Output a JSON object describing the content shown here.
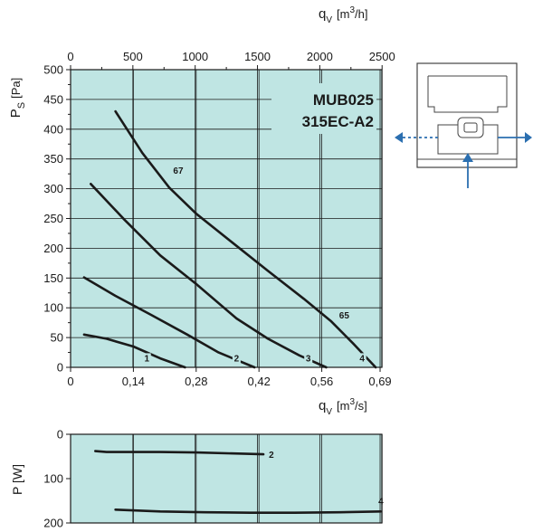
{
  "chart_data": [
    {
      "type": "line",
      "title_lines": [
        "MUB025",
        "315EC-A2"
      ],
      "ylabel": "P",
      "ylabel_sub": "S",
      "ylabel_unit": "[Pa]",
      "xlabel": "q",
      "xlabel_sub": "V",
      "xlabel_unit_pre": "[m",
      "xlabel_unit_sup": "3",
      "xlabel_unit_post": "/s]",
      "top_xlabel": "q",
      "top_xlabel_sub": "V",
      "top_xlabel_unit_pre": "[m",
      "top_xlabel_unit_sup": "3",
      "top_xlabel_unit_post": "/h]",
      "xlim": [
        0,
        0.694
      ],
      "ylim": [
        0,
        500
      ],
      "x_ticks": [
        0,
        0.14,
        0.28,
        0.42,
        0.56,
        0.69
      ],
      "x_tick_labels": [
        "0",
        "0,14",
        "0,28",
        "0,42",
        "0,56",
        "0,69"
      ],
      "top_ticks_m3h": [
        0,
        500,
        1000,
        1500,
        2000,
        2500
      ],
      "top_tick_labels": [
        "0",
        "500",
        "1000",
        "1500",
        "2000",
        "2500"
      ],
      "y_ticks": [
        0,
        50,
        100,
        150,
        200,
        250,
        300,
        350,
        400,
        450,
        500
      ],
      "y_tick_labels": [
        "0",
        "50",
        "100",
        "150",
        "200",
        "250",
        "300",
        "350",
        "400",
        "450",
        "500"
      ],
      "grid": true,
      "background_color": "#bfe5e3",
      "series": [
        {
          "name": "1",
          "x": [
            0.03,
            0.08,
            0.14,
            0.2,
            0.255
          ],
          "y": [
            55,
            48,
            35,
            15,
            0
          ]
        },
        {
          "name": "2",
          "x": [
            0.03,
            0.1,
            0.18,
            0.26,
            0.33,
            0.41
          ],
          "y": [
            151,
            120,
            88,
            55,
            25,
            0
          ]
        },
        {
          "name": "3",
          "x": [
            0.045,
            0.12,
            0.2,
            0.28,
            0.37,
            0.44,
            0.51,
            0.57
          ],
          "y": [
            308,
            248,
            188,
            140,
            82,
            48,
            20,
            0
          ]
        },
        {
          "name": "4",
          "x": [
            0.1,
            0.16,
            0.22,
            0.28,
            0.36,
            0.44,
            0.52,
            0.58,
            0.63,
            0.68
          ],
          "y": [
            430,
            360,
            302,
            258,
            210,
            162,
            115,
            78,
            40,
            0
          ]
        }
      ],
      "annotations": [
        {
          "text": "67",
          "x": 0.24,
          "y": 325
        },
        {
          "text": "65",
          "x": 0.61,
          "y": 82
        },
        {
          "text": "1",
          "x": 0.17,
          "y": 10
        },
        {
          "text": "2",
          "x": 0.37,
          "y": 10
        },
        {
          "text": "3",
          "x": 0.53,
          "y": 10
        },
        {
          "text": "4",
          "x": 0.65,
          "y": 10
        }
      ]
    },
    {
      "type": "line",
      "ylabel": "P [W]",
      "xlim": [
        0,
        0.694
      ],
      "ylim": [
        200,
        0
      ],
      "y_ticks": [
        0,
        100,
        200
      ],
      "y_tick_labels": [
        "0",
        "100",
        "200"
      ],
      "grid": true,
      "background_color": "#bfe5e3",
      "series": [
        {
          "name": "2",
          "x": [
            0.055,
            0.08,
            0.2,
            0.28,
            0.43
          ],
          "y": [
            38,
            40,
            40,
            41,
            45
          ]
        },
        {
          "name": "4",
          "x": [
            0.1,
            0.2,
            0.3,
            0.4,
            0.5,
            0.6,
            0.7
          ],
          "y": [
            170,
            174,
            176,
            177,
            177,
            176,
            174
          ]
        }
      ]
    }
  ],
  "diagram": {
    "outline_color": "#444444",
    "arrow_color": "#2b6fb0"
  }
}
